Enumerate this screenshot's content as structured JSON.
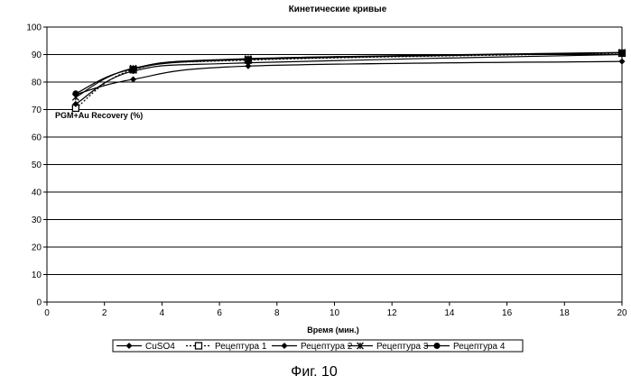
{
  "chart_data": {
    "type": "line",
    "title": "Кинетические кривые",
    "xlabel": "Время (мин.)",
    "ylabel": "PGM+Au Recovery (%)",
    "xlim": [
      0,
      20
    ],
    "ylim": [
      0,
      100
    ],
    "x_ticks": [
      0,
      2,
      4,
      6,
      8,
      10,
      12,
      14,
      16,
      18,
      20
    ],
    "y_ticks": [
      0,
      10,
      20,
      30,
      40,
      50,
      60,
      70,
      80,
      90,
      100
    ],
    "grid": "horizontal",
    "legend_position": "bottom",
    "series": [
      {
        "name": "CuSO4",
        "x": [
          1,
          3,
          7,
          20
        ],
        "y": [
          75.5,
          81,
          85.8,
          87.5
        ],
        "color": "#000000",
        "marker": "diamond",
        "dash": "solid"
      },
      {
        "name": "Рецептура 1",
        "x": [
          1,
          3,
          7,
          20
        ],
        "y": [
          70.5,
          84.5,
          88,
          90.5
        ],
        "color": "#000000",
        "marker": "square-open",
        "dash": "dotted"
      },
      {
        "name": "Рецептура 2",
        "x": [
          1,
          3,
          7,
          20
        ],
        "y": [
          72,
          84,
          87,
          90
        ],
        "color": "#000000",
        "marker": "diamond",
        "dash": "solid"
      },
      {
        "name": "Рецептура 3",
        "x": [
          1,
          3,
          7,
          20
        ],
        "y": [
          74.5,
          85,
          88.5,
          90.8
        ],
        "color": "#000000",
        "marker": "star",
        "dash": "solid"
      },
      {
        "name": "Рецептура 4",
        "x": [
          1,
          3,
          7,
          20
        ],
        "y": [
          75.8,
          84.8,
          88.2,
          90.6
        ],
        "color": "#000000",
        "marker": "circle",
        "dash": "solid"
      }
    ]
  },
  "caption": "Фиг. 10"
}
